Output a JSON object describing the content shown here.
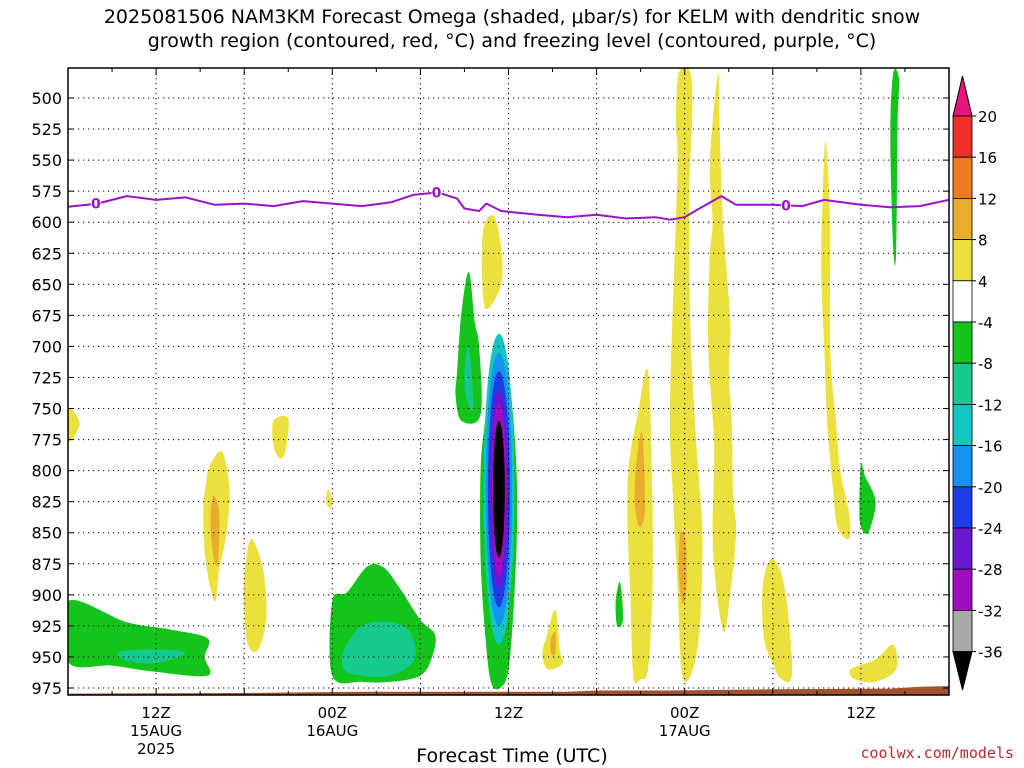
{
  "title_line1": "2025081506 NAM3KM Forecast Omega (shaded, μbar/s) for KELM with dendritic snow",
  "title_line2": "growth region (contoured, red, °C) and freezing level (contoured, purple, °C)",
  "credit": "coolwx.com/models",
  "chart_data": {
    "type": "heatmap",
    "title": "2025081506 NAM3KM Forecast Omega (shaded, μbar/s) for KELM with dendritic snow growth region (contoured, red, °C) and freezing level (contoured, purple, °C)",
    "xlabel": "Forecast Time (UTC)",
    "ylabel": "",
    "x_range_hours_after_2025081506": [
      0,
      60
    ],
    "y_range_mb": [
      975,
      500
    ],
    "yticks": [
      500,
      525,
      550,
      575,
      600,
      625,
      650,
      675,
      700,
      725,
      750,
      775,
      800,
      825,
      850,
      875,
      900,
      925,
      950,
      975
    ],
    "xticks": [
      {
        "label": "12Z",
        "sublabel": "15AUG",
        "sublabel2": "2025",
        "hour": 6
      },
      {
        "label": "00Z",
        "sublabel": "16AUG",
        "sublabel2": "",
        "hour": 18
      },
      {
        "label": "12Z",
        "sublabel": "",
        "sublabel2": "",
        "hour": 30
      },
      {
        "label": "00Z",
        "sublabel": "17AUG",
        "sublabel2": "",
        "hour": 42
      },
      {
        "label": "12Z",
        "sublabel": "",
        "sublabel2": "",
        "hour": 54
      }
    ],
    "colorbar": {
      "labels": [
        "20",
        "16",
        "12",
        "8",
        "4",
        "-4",
        "-8",
        "-12",
        "-16",
        "-20",
        "-24",
        "-28",
        "-32",
        "-36"
      ],
      "bins": [
        {
          "lo": 20,
          "hi": 24,
          "color": "#e8157f"
        },
        {
          "lo": 16,
          "hi": 20,
          "color": "#f0302a"
        },
        {
          "lo": 12,
          "hi": 16,
          "color": "#ef7a1f"
        },
        {
          "lo": 8,
          "hi": 12,
          "color": "#e8ad2c"
        },
        {
          "lo": 4,
          "hi": 8,
          "color": "#ece03c"
        },
        {
          "lo": -4,
          "hi": 4,
          "color": "#ffffff"
        },
        {
          "lo": -8,
          "hi": -4,
          "color": "#13c51a"
        },
        {
          "lo": -12,
          "hi": -8,
          "color": "#15c98f"
        },
        {
          "lo": -16,
          "hi": -12,
          "color": "#13c6c4"
        },
        {
          "lo": -20,
          "hi": -16,
          "color": "#1493f0"
        },
        {
          "lo": -24,
          "hi": -20,
          "color": "#1d3ce6"
        },
        {
          "lo": -28,
          "hi": -24,
          "color": "#6b16d1"
        },
        {
          "lo": -32,
          "hi": -28,
          "color": "#a00cc0"
        },
        {
          "lo": -36,
          "hi": -32,
          "color": "#a9a9a9"
        },
        {
          "lo": -40,
          "hi": -36,
          "color": "#000000"
        }
      ]
    },
    "freezing_level": {
      "color": "#9b12c8",
      "contour_label": "0",
      "label_hours": [
        1.9,
        25.1,
        48.9
      ],
      "points": [
        [
          0,
          587.5
        ],
        [
          2,
          585
        ],
        [
          4,
          579
        ],
        [
          6,
          582
        ],
        [
          8,
          580
        ],
        [
          10,
          586
        ],
        [
          12,
          585
        ],
        [
          14,
          587
        ],
        [
          16,
          583
        ],
        [
          18,
          585
        ],
        [
          20,
          587
        ],
        [
          22,
          584
        ],
        [
          23.5,
          578
        ],
        [
          25.2,
          576
        ],
        [
          26.5,
          581
        ],
        [
          27,
          589
        ],
        [
          28,
          591
        ],
        [
          28.5,
          585
        ],
        [
          29.5,
          591
        ],
        [
          32,
          594
        ],
        [
          34,
          596
        ],
        [
          36,
          594
        ],
        [
          38,
          597
        ],
        [
          40,
          596
        ],
        [
          41,
          598
        ],
        [
          42,
          596
        ],
        [
          43,
          589
        ],
        [
          44.5,
          579
        ],
        [
          45.5,
          586
        ],
        [
          48,
          586
        ],
        [
          50,
          587
        ],
        [
          51.5,
          582
        ],
        [
          54,
          586
        ],
        [
          56,
          588
        ],
        [
          58,
          587
        ],
        [
          60,
          582
        ]
      ]
    },
    "terrain": {
      "color": "#a0522d",
      "points": [
        [
          0,
          979.5
        ],
        [
          12,
          979
        ],
        [
          20,
          978
        ],
        [
          30,
          978
        ],
        [
          34,
          978
        ],
        [
          36,
          977
        ],
        [
          41,
          977
        ],
        [
          48,
          976
        ],
        [
          56,
          975.5
        ],
        [
          58,
          974
        ],
        [
          60,
          973.5
        ]
      ]
    },
    "omega_regions": [
      {
        "value": -6,
        "points": [
          [
            0,
            905
          ],
          [
            4,
            922
          ],
          [
            7,
            928
          ],
          [
            9.5,
            935
          ],
          [
            9.3,
            950
          ],
          [
            9.5,
            965
          ],
          [
            6,
            962
          ],
          [
            3,
            957
          ],
          [
            0,
            954
          ]
        ]
      },
      {
        "value": -10,
        "points": [
          [
            3.5,
            946
          ],
          [
            6,
            944
          ],
          [
            8,
            947
          ],
          [
            6,
            955
          ],
          [
            4,
            953
          ]
        ]
      },
      {
        "value": 6,
        "points": [
          [
            0,
            750
          ],
          [
            0.8,
            762
          ],
          [
            0,
            777
          ]
        ]
      },
      {
        "value": 6,
        "points": [
          [
            9.7,
            795
          ],
          [
            10.5,
            785
          ],
          [
            11,
            815
          ],
          [
            10.8,
            850
          ],
          [
            10.3,
            880
          ],
          [
            10,
            905
          ],
          [
            9.4,
            875
          ],
          [
            9.2,
            835
          ],
          [
            9.4,
            810
          ]
        ]
      },
      {
        "value": 10,
        "points": [
          [
            9.9,
            820
          ],
          [
            10.3,
            835
          ],
          [
            10.2,
            875
          ],
          [
            9.9,
            868
          ],
          [
            9.7,
            840
          ]
        ]
      },
      {
        "value": 6,
        "points": [
          [
            12.5,
            855
          ],
          [
            13.3,
            880
          ],
          [
            13.5,
            920
          ],
          [
            12.9,
            945
          ],
          [
            12.2,
            938
          ],
          [
            12,
            905
          ],
          [
            12.1,
            875
          ]
        ]
      },
      {
        "value": 6,
        "points": [
          [
            14,
            760
          ],
          [
            15,
            758
          ],
          [
            14.8,
            785
          ],
          [
            14.4,
            790
          ],
          [
            14,
            780
          ]
        ]
      },
      {
        "value": 6,
        "points": [
          [
            17.7,
            815
          ],
          [
            18,
            825
          ],
          [
            17.8,
            830
          ],
          [
            17.6,
            825
          ]
        ]
      },
      {
        "value": -6,
        "points": [
          [
            18,
            905
          ],
          [
            19,
            898
          ],
          [
            20.4,
            877
          ],
          [
            21.5,
            878
          ],
          [
            22.5,
            893
          ],
          [
            24,
            920
          ],
          [
            25,
            932
          ],
          [
            24.8,
            950
          ],
          [
            24,
            965
          ],
          [
            22,
            970
          ],
          [
            20,
            970
          ],
          [
            18,
            965
          ]
        ]
      },
      {
        "value": -10,
        "points": [
          [
            18.8,
            945
          ],
          [
            20,
            925
          ],
          [
            22,
            922
          ],
          [
            23.3,
            930
          ],
          [
            23.6,
            952
          ],
          [
            22,
            965
          ],
          [
            20,
            965
          ],
          [
            18.8,
            960
          ]
        ]
      },
      {
        "value": 6,
        "points": [
          [
            28.3,
            605
          ],
          [
            29,
            595
          ],
          [
            29.5,
            620
          ],
          [
            29.5,
            650
          ],
          [
            28.5,
            670
          ],
          [
            28.2,
            645
          ]
        ]
      },
      {
        "value": -6,
        "points": [
          [
            26.5,
            720
          ],
          [
            26.8,
            672
          ],
          [
            27.3,
            640
          ],
          [
            27.7,
            680
          ],
          [
            28,
            700
          ],
          [
            28.1,
            755
          ],
          [
            26.8,
            760
          ],
          [
            26.4,
            740
          ]
        ]
      },
      {
        "value": -10,
        "points": [
          [
            27,
            720
          ],
          [
            27.3,
            700
          ],
          [
            27.6,
            750
          ],
          [
            27.1,
            740
          ]
        ]
      },
      {
        "value": -6,
        "points": [
          [
            28.4,
            760
          ],
          [
            28.9,
            708
          ],
          [
            29.4,
            690
          ],
          [
            29.9,
            710
          ],
          [
            30.4,
            770
          ],
          [
            30.6,
            830
          ],
          [
            30.4,
            900
          ],
          [
            30,
            960
          ],
          [
            29.4,
            975
          ],
          [
            28.8,
            970
          ],
          [
            28.4,
            930
          ],
          [
            28.1,
            870
          ],
          [
            28.1,
            800
          ]
        ]
      }
    ],
    "omega_core": {
      "center_hour": 29.35,
      "center_mb": 815,
      "halfwidth_hours": [
        1.05,
        0.9,
        0.75,
        0.6,
        0.5,
        0.4
      ],
      "halfheight_mb": [
        125,
        110,
        95,
        80,
        70,
        55
      ]
    },
    "omega_regions_2": [
      {
        "value": 6,
        "points": [
          [
            32.6,
            933
          ],
          [
            33.2,
            912
          ],
          [
            33.5,
            945
          ],
          [
            33.7,
            955
          ],
          [
            32.7,
            960
          ],
          [
            32.3,
            948
          ]
        ]
      },
      {
        "value": 10,
        "points": [
          [
            32.9,
            935
          ],
          [
            33.2,
            930
          ],
          [
            33.2,
            947
          ],
          [
            32.9,
            947
          ]
        ]
      },
      {
        "value": -6,
        "points": [
          [
            37.3,
            905
          ],
          [
            37.6,
            890
          ],
          [
            37.8,
            920
          ],
          [
            37.4,
            925
          ]
        ]
      },
      {
        "value": 6,
        "points": [
          [
            38.2,
            795
          ],
          [
            38.8,
            755
          ],
          [
            39.5,
            720
          ],
          [
            39.8,
            820
          ],
          [
            39.8,
            900
          ],
          [
            39.5,
            960
          ],
          [
            39,
            968
          ],
          [
            38.5,
            965
          ],
          [
            38.3,
            900
          ],
          [
            38.1,
            840
          ]
        ]
      },
      {
        "value": 10,
        "points": [
          [
            38.7,
            795
          ],
          [
            39.1,
            770
          ],
          [
            39.3,
            830
          ],
          [
            38.9,
            845
          ],
          [
            38.6,
            825
          ]
        ]
      },
      {
        "value": 6,
        "points": [
          [
            41,
            745
          ],
          [
            41.5,
            560
          ],
          [
            41.4,
            520
          ],
          [
            41.6,
            480
          ],
          [
            42.4,
            480
          ],
          [
            42.5,
            520
          ],
          [
            42.3,
            580
          ],
          [
            42.4,
            690
          ],
          [
            42.8,
            780
          ],
          [
            43.2,
            850
          ],
          [
            43,
            930
          ],
          [
            42.4,
            965
          ],
          [
            41.8,
            962
          ],
          [
            41.5,
            890
          ],
          [
            41.2,
            820
          ]
        ]
      },
      {
        "value": 10,
        "points": [
          [
            41.7,
            850
          ],
          [
            42.1,
            860
          ],
          [
            42.1,
            900
          ],
          [
            41.8,
            905
          ],
          [
            41.6,
            880
          ]
        ]
      },
      {
        "value": 6,
        "points": [
          [
            43.9,
            520
          ],
          [
            44.3,
            480
          ],
          [
            44.4,
            530
          ],
          [
            44.6,
            600
          ],
          [
            45.1,
            680
          ],
          [
            45,
            720
          ],
          [
            45.2,
            760
          ],
          [
            45.3,
            820
          ],
          [
            45.5,
            850
          ],
          [
            45.1,
            900
          ],
          [
            44.7,
            930
          ],
          [
            44.2,
            900
          ],
          [
            43.9,
            850
          ],
          [
            44,
            780
          ],
          [
            43.6,
            700
          ],
          [
            43.7,
            630
          ],
          [
            43.9,
            600
          ],
          [
            43.7,
            560
          ]
        ]
      },
      {
        "value": 6,
        "points": [
          [
            47.3,
            895
          ],
          [
            47.8,
            872
          ],
          [
            48.5,
            880
          ],
          [
            49,
            910
          ],
          [
            49.3,
            965
          ],
          [
            48.5,
            967
          ],
          [
            48,
            955
          ],
          [
            47.4,
            935
          ]
        ]
      },
      {
        "value": 6,
        "points": [
          [
            51.4,
            580
          ],
          [
            51.6,
            535
          ],
          [
            51.9,
            600
          ],
          [
            51.9,
            700
          ],
          [
            52.3,
            760
          ],
          [
            52.6,
            800
          ],
          [
            53.2,
            835
          ],
          [
            53.2,
            855
          ],
          [
            52.4,
            845
          ],
          [
            52.1,
            815
          ],
          [
            51.7,
            760
          ],
          [
            51.5,
            700
          ],
          [
            51.3,
            640
          ]
        ]
      },
      {
        "value": -6,
        "points": [
          [
            54,
            795
          ],
          [
            54.3,
            805
          ],
          [
            55,
            825
          ],
          [
            54.5,
            850
          ],
          [
            54,
            845
          ],
          [
            53.9,
            830
          ]
        ]
      },
      {
        "value": 6,
        "points": [
          [
            53.3,
            960
          ],
          [
            55,
            952
          ],
          [
            56.2,
            940
          ],
          [
            56.4,
            960
          ],
          [
            55,
            970
          ],
          [
            53.6,
            968
          ]
        ]
      },
      {
        "value": -6,
        "points": [
          [
            56.2,
            480
          ],
          [
            56.6,
            485
          ],
          [
            56.5,
            520
          ],
          [
            56.4,
            625
          ],
          [
            56.2,
            620
          ],
          [
            56,
            530
          ]
        ]
      }
    ]
  }
}
